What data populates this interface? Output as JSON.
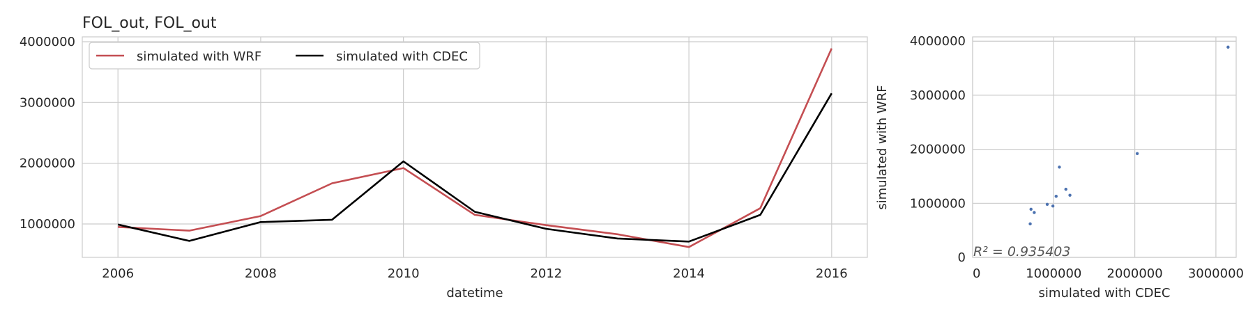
{
  "chart_data": [
    {
      "type": "line",
      "title": "FOL_out, FOL_out",
      "xlabel": "datetime",
      "ylabel": "",
      "x": [
        2006,
        2007,
        2008,
        2009,
        2010,
        2011,
        2012,
        2013,
        2014,
        2015,
        2016
      ],
      "xlim": [
        2005.5,
        2016.5
      ],
      "ylim": [
        450000,
        4080000
      ],
      "xticks": [
        2006,
        2008,
        2010,
        2012,
        2014,
        2016
      ],
      "yticks": [
        1000000,
        2000000,
        3000000,
        4000000
      ],
      "grid": true,
      "legend_position": "top-left",
      "series": [
        {
          "name": "simulated with WRF",
          "color": "#c44e52",
          "values": [
            950000,
            890000,
            1130000,
            1670000,
            1920000,
            1150000,
            980000,
            830000,
            620000,
            1260000,
            3890000
          ]
        },
        {
          "name": "simulated with CDEC",
          "color": "#000000",
          "values": [
            990000,
            720000,
            1030000,
            1070000,
            2030000,
            1200000,
            920000,
            760000,
            710000,
            1150000,
            3150000
          ]
        }
      ]
    },
    {
      "type": "scatter",
      "title": "",
      "xlabel": "simulated with CDEC",
      "ylabel": "simulated with WRF",
      "xlim": [
        0,
        3250000
      ],
      "ylim": [
        0,
        4080000
      ],
      "xticks": [
        0,
        1000000,
        2000000,
        3000000
      ],
      "yticks": [
        0,
        1000000,
        2000000,
        3000000,
        4000000
      ],
      "grid": true,
      "color": "#4c72b0",
      "points": [
        {
          "x": 990000,
          "y": 950000
        },
        {
          "x": 720000,
          "y": 890000
        },
        {
          "x": 1030000,
          "y": 1130000
        },
        {
          "x": 1070000,
          "y": 1670000
        },
        {
          "x": 2030000,
          "y": 1920000
        },
        {
          "x": 1200000,
          "y": 1150000
        },
        {
          "x": 920000,
          "y": 980000
        },
        {
          "x": 760000,
          "y": 830000
        },
        {
          "x": 710000,
          "y": 620000
        },
        {
          "x": 1150000,
          "y": 1260000
        },
        {
          "x": 3150000,
          "y": 3890000
        }
      ],
      "annotation": "R² = 0.935403"
    }
  ]
}
